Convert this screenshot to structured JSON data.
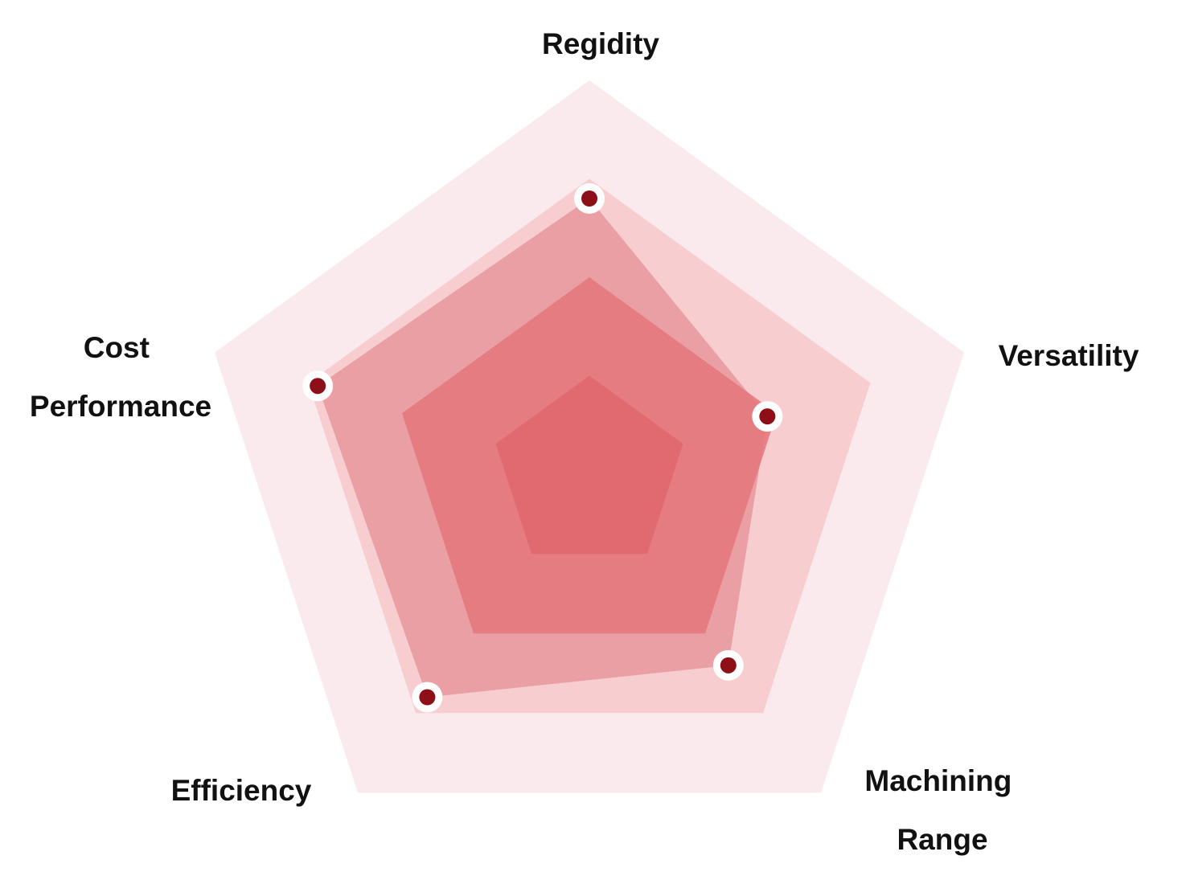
{
  "chart_data": {
    "type": "radar",
    "axes": [
      {
        "name": "Regidity",
        "label_lines": [
          "Regidity"
        ]
      },
      {
        "name": "Versatility",
        "label_lines": [
          "Versatility"
        ]
      },
      {
        "name": "Machining Range",
        "label_lines": [
          "Machining",
          "Range"
        ]
      },
      {
        "name": "Efficiency",
        "label_lines": [
          "Efficiency"
        ]
      },
      {
        "name": "Cost Performance",
        "label_lines": [
          "Cost",
          "Performance"
        ]
      }
    ],
    "levels": 4,
    "range": [
      0,
      4
    ],
    "values": [
      2.8,
      1.9,
      2.4,
      2.8,
      2.9
    ],
    "colors": {
      "level_fills": [
        "#fbeaed",
        "#f7cdd0",
        "#e8777c",
        "#e0555b"
      ],
      "level_opacity": [
        1,
        1,
        0.9,
        0.95
      ],
      "series_fill": "#e07a80",
      "series_opacity": 0.55,
      "point_fill": "#8e0f18",
      "point_ring": "#ffffff"
    }
  }
}
